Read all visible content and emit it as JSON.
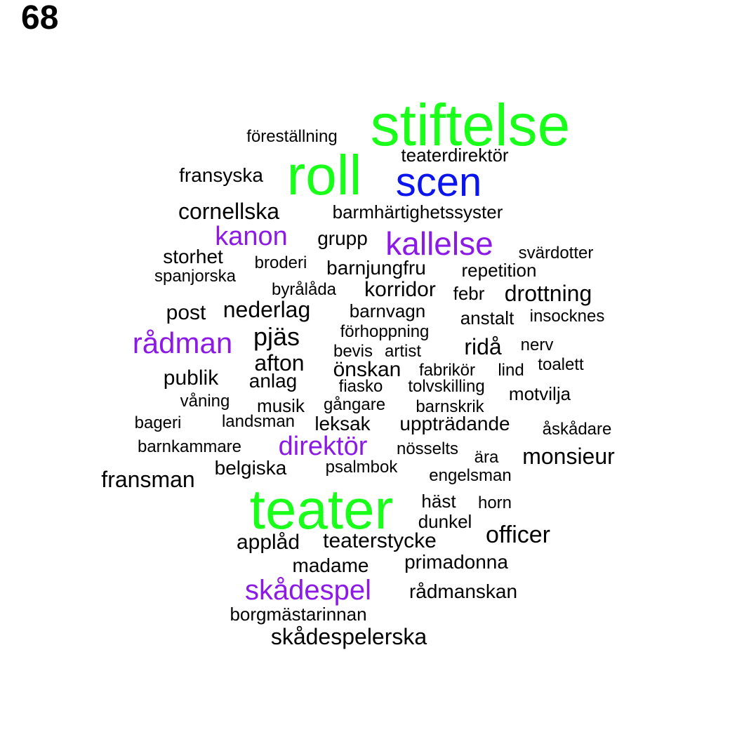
{
  "page_number": "68",
  "colors": {
    "green": "#1aff1a",
    "blue": "#0a14ee",
    "purple": "#8c1ae6",
    "black": "#000000"
  },
  "words": [
    {
      "text": "stiftelse",
      "color": "green"
    },
    {
      "text": "föreställning",
      "color": "black"
    },
    {
      "text": "teaterdirektör",
      "color": "black"
    },
    {
      "text": "roll",
      "color": "green"
    },
    {
      "text": "scen",
      "color": "blue"
    },
    {
      "text": "fransyska",
      "color": "black"
    },
    {
      "text": "cornellska",
      "color": "black"
    },
    {
      "text": "barmhärtighetssyster",
      "color": "black"
    },
    {
      "text": "kanon",
      "color": "purple"
    },
    {
      "text": "grupp",
      "color": "black"
    },
    {
      "text": "kallelse",
      "color": "purple"
    },
    {
      "text": "storhet",
      "color": "black"
    },
    {
      "text": "svärdotter",
      "color": "black"
    },
    {
      "text": "broderi",
      "color": "black"
    },
    {
      "text": "barnjungfru",
      "color": "black"
    },
    {
      "text": "spanjorska",
      "color": "black"
    },
    {
      "text": "repetition",
      "color": "black"
    },
    {
      "text": "byrålåda",
      "color": "black"
    },
    {
      "text": "korridor",
      "color": "black"
    },
    {
      "text": "febr",
      "color": "black"
    },
    {
      "text": "drottning",
      "color": "black"
    },
    {
      "text": "post",
      "color": "black"
    },
    {
      "text": "nederlag",
      "color": "black"
    },
    {
      "text": "barnvagn",
      "color": "black"
    },
    {
      "text": "anstalt",
      "color": "black"
    },
    {
      "text": "insocknes",
      "color": "black"
    },
    {
      "text": "förhoppning",
      "color": "black"
    },
    {
      "text": "rådman",
      "color": "purple"
    },
    {
      "text": "pjäs",
      "color": "black"
    },
    {
      "text": "bevis",
      "color": "black"
    },
    {
      "text": "artist",
      "color": "black"
    },
    {
      "text": "ridå",
      "color": "black"
    },
    {
      "text": "nerv",
      "color": "black"
    },
    {
      "text": "afton",
      "color": "black"
    },
    {
      "text": "önskan",
      "color": "black"
    },
    {
      "text": "fabrikör",
      "color": "black"
    },
    {
      "text": "lind",
      "color": "black"
    },
    {
      "text": "toalett",
      "color": "black"
    },
    {
      "text": "publik",
      "color": "black"
    },
    {
      "text": "anlag",
      "color": "black"
    },
    {
      "text": "fiasko",
      "color": "black"
    },
    {
      "text": "tolvskilling",
      "color": "black"
    },
    {
      "text": "motvilja",
      "color": "black"
    },
    {
      "text": "våning",
      "color": "black"
    },
    {
      "text": "musik",
      "color": "black"
    },
    {
      "text": "gångare",
      "color": "black"
    },
    {
      "text": "barnskrik",
      "color": "black"
    },
    {
      "text": "bageri",
      "color": "black"
    },
    {
      "text": "landsman",
      "color": "black"
    },
    {
      "text": "leksak",
      "color": "black"
    },
    {
      "text": "uppträdande",
      "color": "black"
    },
    {
      "text": "åskådare",
      "color": "black"
    },
    {
      "text": "barnkammare",
      "color": "black"
    },
    {
      "text": "direktör",
      "color": "purple"
    },
    {
      "text": "nösselts",
      "color": "black"
    },
    {
      "text": "ära",
      "color": "black"
    },
    {
      "text": "monsieur",
      "color": "black"
    },
    {
      "text": "belgiska",
      "color": "black"
    },
    {
      "text": "psalmbok",
      "color": "black"
    },
    {
      "text": "fransman",
      "color": "black"
    },
    {
      "text": "engelsman",
      "color": "black"
    },
    {
      "text": "teater",
      "color": "green"
    },
    {
      "text": "häst",
      "color": "black"
    },
    {
      "text": "horn",
      "color": "black"
    },
    {
      "text": "dunkel",
      "color": "black"
    },
    {
      "text": "officer",
      "color": "black"
    },
    {
      "text": "applåd",
      "color": "black"
    },
    {
      "text": "teaterstycke",
      "color": "black"
    },
    {
      "text": "madame",
      "color": "black"
    },
    {
      "text": "primadonna",
      "color": "black"
    },
    {
      "text": "skådespel",
      "color": "purple"
    },
    {
      "text": "rådmanskan",
      "color": "black"
    },
    {
      "text": "borgmästarinnan",
      "color": "black"
    },
    {
      "text": "skådespelerska",
      "color": "black"
    }
  ]
}
